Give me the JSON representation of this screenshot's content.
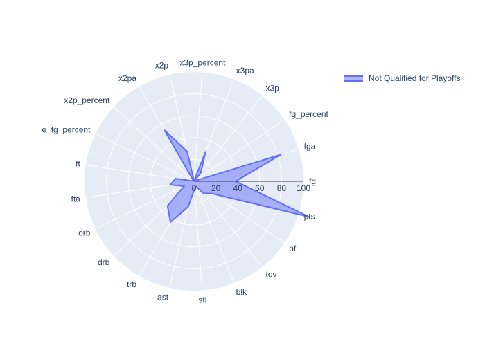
{
  "chart_data": {
    "type": "radar",
    "theta": [
      "fg",
      "fga",
      "fg_percent",
      "x3p",
      "x3pa",
      "x3p_percent",
      "x2p",
      "x2pa",
      "x2p_percent",
      "e_fg_percent",
      "ft",
      "fta",
      "orb",
      "drb",
      "trb",
      "ast",
      "stl",
      "blk",
      "tov",
      "pf",
      "pts"
    ],
    "radial_ticks": [
      "0",
      "20",
      "40",
      "60",
      "80",
      "100"
    ],
    "radial_range": [
      0,
      100
    ],
    "series": [
      {
        "name": "Not Qualified for Playoffs",
        "values": [
          38,
          83,
          0.45,
          10,
          29,
          0.35,
          28,
          54,
          0.5,
          0.5,
          17,
          22,
          10,
          33,
          43,
          24,
          7,
          5,
          14,
          20,
          110
        ]
      }
    ],
    "legend_position": "top-right",
    "colors": {
      "line": "#636efa",
      "fill": "rgba(99,110,250,0.5)",
      "polar_bg": "#e5ecf6",
      "grid": "#ffffff",
      "text": "#2a3f5f"
    }
  }
}
